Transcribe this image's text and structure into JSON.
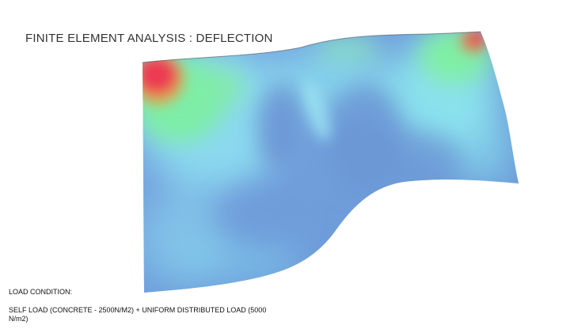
{
  "title": "FINITE ELEMENT ANALYSIS : DEFLECTION",
  "load": {
    "heading": "LOAD CONDITION:",
    "description": "SELF LOAD (CONCRETE - 2500N/M2) + UNIFORM DISTRIBUTED LOAD (5000 N/m2)"
  },
  "colors": {
    "low": "#6f9fdc",
    "mid_low": "#86e6f0",
    "mid_high": "#7cf0a0",
    "high": "#ec3a52"
  }
}
